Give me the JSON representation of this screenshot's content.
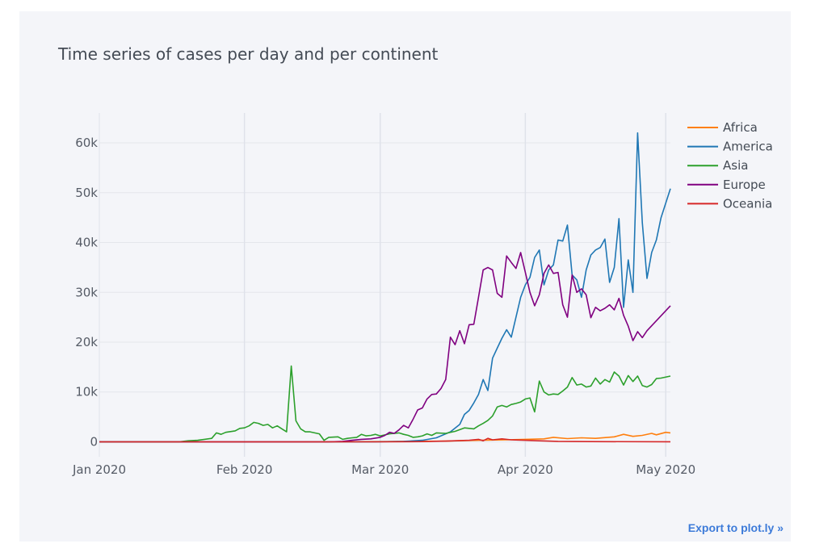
{
  "chart_data": {
    "type": "line",
    "title": "Time series of cases per day and per continent",
    "xlabel": "",
    "ylabel": "",
    "x_ticks": [
      "Jan 2020",
      "Feb 2020",
      "Mar 2020",
      "Apr 2020",
      "May 2020"
    ],
    "y_ticks": [
      "0",
      "10k",
      "20k",
      "30k",
      "40k",
      "50k",
      "60k"
    ],
    "xlim": [
      "2020-01-01",
      "2020-05-02"
    ],
    "ylim": [
      -3000,
      66000
    ],
    "grid": true,
    "legend_position": "top-right",
    "series": [
      {
        "name": "Africa",
        "color": "#ff7f0e",
        "points": [
          [
            "2020-01-01",
            0
          ],
          [
            "2020-02-14",
            0
          ],
          [
            "2020-03-01",
            50
          ],
          [
            "2020-03-15",
            150
          ],
          [
            "2020-03-22",
            300
          ],
          [
            "2020-03-28",
            400
          ],
          [
            "2020-04-01",
            500
          ],
          [
            "2020-04-05",
            600
          ],
          [
            "2020-04-07",
            900
          ],
          [
            "2020-04-10",
            650
          ],
          [
            "2020-04-13",
            800
          ],
          [
            "2020-04-16",
            700
          ],
          [
            "2020-04-20",
            1000
          ],
          [
            "2020-04-22",
            1500
          ],
          [
            "2020-04-24",
            1100
          ],
          [
            "2020-04-26",
            1300
          ],
          [
            "2020-04-28",
            1700
          ],
          [
            "2020-04-29",
            1400
          ],
          [
            "2020-05-01",
            1900
          ],
          [
            "2020-05-02",
            1800
          ]
        ]
      },
      {
        "name": "America",
        "color": "#1f77b4",
        "points": [
          [
            "2020-01-01",
            0
          ],
          [
            "2020-02-29",
            0
          ],
          [
            "2020-03-06",
            100
          ],
          [
            "2020-03-10",
            300
          ],
          [
            "2020-03-13",
            800
          ],
          [
            "2020-03-16",
            2000
          ],
          [
            "2020-03-18",
            3500
          ],
          [
            "2020-03-19",
            5500
          ],
          [
            "2020-03-20",
            6300
          ],
          [
            "2020-03-21",
            7800
          ],
          [
            "2020-03-22",
            9500
          ],
          [
            "2020-03-23",
            12500
          ],
          [
            "2020-03-24",
            10300
          ],
          [
            "2020-03-25",
            16800
          ],
          [
            "2020-03-26",
            18800
          ],
          [
            "2020-03-27",
            20800
          ],
          [
            "2020-03-28",
            22500
          ],
          [
            "2020-03-29",
            21000
          ],
          [
            "2020-03-30",
            25000
          ],
          [
            "2020-03-31",
            29000
          ],
          [
            "2020-04-01",
            31500
          ],
          [
            "2020-04-02",
            33000
          ],
          [
            "2020-04-03",
            37000
          ],
          [
            "2020-04-04",
            38500
          ],
          [
            "2020-04-05",
            31500
          ],
          [
            "2020-04-06",
            34500
          ],
          [
            "2020-04-07",
            35500
          ],
          [
            "2020-04-08",
            40500
          ],
          [
            "2020-04-09",
            40300
          ],
          [
            "2020-04-10",
            43500
          ],
          [
            "2020-04-11",
            33500
          ],
          [
            "2020-04-12",
            32500
          ],
          [
            "2020-04-13",
            29000
          ],
          [
            "2020-04-14",
            34500
          ],
          [
            "2020-04-15",
            37500
          ],
          [
            "2020-04-16",
            38500
          ],
          [
            "2020-04-17",
            39000
          ],
          [
            "2020-04-18",
            40700
          ],
          [
            "2020-04-19",
            32000
          ],
          [
            "2020-04-20",
            35000
          ],
          [
            "2020-04-21",
            44800
          ],
          [
            "2020-04-22",
            27000
          ],
          [
            "2020-04-23",
            36500
          ],
          [
            "2020-04-24",
            30000
          ],
          [
            "2020-04-25",
            62000
          ],
          [
            "2020-04-26",
            44000
          ],
          [
            "2020-04-27",
            32800
          ],
          [
            "2020-04-28",
            38000
          ],
          [
            "2020-04-29",
            40500
          ],
          [
            "2020-04-30",
            45000
          ],
          [
            "2020-05-02",
            50800
          ]
        ]
      },
      {
        "name": "Asia",
        "color": "#2ca02c",
        "points": [
          [
            "2020-01-01",
            0
          ],
          [
            "2020-01-18",
            0
          ],
          [
            "2020-01-20",
            200
          ],
          [
            "2020-01-22",
            300
          ],
          [
            "2020-01-25",
            700
          ],
          [
            "2020-01-26",
            1800
          ],
          [
            "2020-01-27",
            1500
          ],
          [
            "2020-01-28",
            1900
          ],
          [
            "2020-01-30",
            2200
          ],
          [
            "2020-01-31",
            2700
          ],
          [
            "2020-02-01",
            2800
          ],
          [
            "2020-02-02",
            3200
          ],
          [
            "2020-02-03",
            3900
          ],
          [
            "2020-02-04",
            3700
          ],
          [
            "2020-02-05",
            3300
          ],
          [
            "2020-02-06",
            3500
          ],
          [
            "2020-02-07",
            2800
          ],
          [
            "2020-02-08",
            3200
          ],
          [
            "2020-02-09",
            2600
          ],
          [
            "2020-02-10",
            2000
          ],
          [
            "2020-02-11",
            15200
          ],
          [
            "2020-02-12",
            4200
          ],
          [
            "2020-02-13",
            2600
          ],
          [
            "2020-02-14",
            2000
          ],
          [
            "2020-02-15",
            2000
          ],
          [
            "2020-02-16",
            1800
          ],
          [
            "2020-02-17",
            1600
          ],
          [
            "2020-02-18",
            300
          ],
          [
            "2020-02-19",
            900
          ],
          [
            "2020-02-21",
            1000
          ],
          [
            "2020-02-22",
            500
          ],
          [
            "2020-02-23",
            700
          ],
          [
            "2020-02-24",
            800
          ],
          [
            "2020-02-25",
            900
          ],
          [
            "2020-02-26",
            1500
          ],
          [
            "2020-02-27",
            1200
          ],
          [
            "2020-02-28",
            1300
          ],
          [
            "2020-02-29",
            1500
          ],
          [
            "2020-03-01",
            1200
          ],
          [
            "2020-03-03",
            1600
          ],
          [
            "2020-03-05",
            1800
          ],
          [
            "2020-03-06",
            1500
          ],
          [
            "2020-03-07",
            1300
          ],
          [
            "2020-03-08",
            900
          ],
          [
            "2020-03-09",
            1000
          ],
          [
            "2020-03-10",
            1200
          ],
          [
            "2020-03-11",
            1600
          ],
          [
            "2020-03-12",
            1300
          ],
          [
            "2020-03-13",
            1800
          ],
          [
            "2020-03-15",
            1700
          ],
          [
            "2020-03-17",
            2100
          ],
          [
            "2020-03-19",
            2800
          ],
          [
            "2020-03-21",
            2600
          ],
          [
            "2020-03-22",
            3200
          ],
          [
            "2020-03-23",
            3700
          ],
          [
            "2020-03-24",
            4300
          ],
          [
            "2020-03-25",
            5200
          ],
          [
            "2020-03-26",
            7000
          ],
          [
            "2020-03-27",
            7300
          ],
          [
            "2020-03-28",
            7000
          ],
          [
            "2020-03-29",
            7500
          ],
          [
            "2020-03-30",
            7700
          ],
          [
            "2020-03-31",
            8000
          ],
          [
            "2020-04-01",
            8600
          ],
          [
            "2020-04-02",
            8800
          ],
          [
            "2020-04-03",
            6000
          ],
          [
            "2020-04-04",
            12200
          ],
          [
            "2020-04-05",
            10000
          ],
          [
            "2020-04-06",
            9400
          ],
          [
            "2020-04-07",
            9600
          ],
          [
            "2020-04-08",
            9500
          ],
          [
            "2020-04-09",
            10200
          ],
          [
            "2020-04-10",
            11000
          ],
          [
            "2020-04-11",
            12900
          ],
          [
            "2020-04-12",
            11400
          ],
          [
            "2020-04-13",
            11600
          ],
          [
            "2020-04-14",
            11000
          ],
          [
            "2020-04-15",
            11200
          ],
          [
            "2020-04-16",
            12800
          ],
          [
            "2020-04-17",
            11600
          ],
          [
            "2020-04-18",
            12500
          ],
          [
            "2020-04-19",
            12000
          ],
          [
            "2020-04-20",
            14000
          ],
          [
            "2020-04-21",
            13200
          ],
          [
            "2020-04-22",
            11400
          ],
          [
            "2020-04-23",
            13300
          ],
          [
            "2020-04-24",
            12100
          ],
          [
            "2020-04-25",
            13200
          ],
          [
            "2020-04-26",
            11300
          ],
          [
            "2020-04-27",
            11000
          ],
          [
            "2020-04-28",
            11500
          ],
          [
            "2020-04-29",
            12700
          ],
          [
            "2020-04-30",
            12800
          ],
          [
            "2020-05-02",
            13200
          ]
        ]
      },
      {
        "name": "Europe",
        "color": "#800080",
        "points": [
          [
            "2020-01-01",
            0
          ],
          [
            "2020-02-19",
            0
          ],
          [
            "2020-02-22",
            100
          ],
          [
            "2020-02-24",
            300
          ],
          [
            "2020-02-26",
            500
          ],
          [
            "2020-02-28",
            600
          ],
          [
            "2020-03-01",
            900
          ],
          [
            "2020-03-02",
            1300
          ],
          [
            "2020-03-03",
            1900
          ],
          [
            "2020-03-04",
            1700
          ],
          [
            "2020-03-05",
            2400
          ],
          [
            "2020-03-06",
            3300
          ],
          [
            "2020-03-07",
            2800
          ],
          [
            "2020-03-08",
            4500
          ],
          [
            "2020-03-09",
            6400
          ],
          [
            "2020-03-10",
            6800
          ],
          [
            "2020-03-11",
            8600
          ],
          [
            "2020-03-12",
            9500
          ],
          [
            "2020-03-13",
            9600
          ],
          [
            "2020-03-14",
            10700
          ],
          [
            "2020-03-15",
            12500
          ],
          [
            "2020-03-16",
            21000
          ],
          [
            "2020-03-17",
            19500
          ],
          [
            "2020-03-18",
            22300
          ],
          [
            "2020-03-19",
            19700
          ],
          [
            "2020-03-20",
            23500
          ],
          [
            "2020-03-21",
            23600
          ],
          [
            "2020-03-22",
            29000
          ],
          [
            "2020-03-23",
            34500
          ],
          [
            "2020-03-24",
            35000
          ],
          [
            "2020-03-25",
            34500
          ],
          [
            "2020-03-26",
            29800
          ],
          [
            "2020-03-27",
            29000
          ],
          [
            "2020-03-28",
            37300
          ],
          [
            "2020-03-29",
            36000
          ],
          [
            "2020-03-30",
            34800
          ],
          [
            "2020-03-31",
            38000
          ],
          [
            "2020-04-01",
            34000
          ],
          [
            "2020-04-02",
            30000
          ],
          [
            "2020-04-03",
            27300
          ],
          [
            "2020-04-04",
            29500
          ],
          [
            "2020-04-05",
            33800
          ],
          [
            "2020-04-06",
            35500
          ],
          [
            "2020-04-07",
            33800
          ],
          [
            "2020-04-08",
            34000
          ],
          [
            "2020-04-09",
            27500
          ],
          [
            "2020-04-10",
            25000
          ],
          [
            "2020-04-11",
            33500
          ],
          [
            "2020-04-12",
            30000
          ],
          [
            "2020-04-13",
            30700
          ],
          [
            "2020-04-14",
            29500
          ],
          [
            "2020-04-15",
            24900
          ],
          [
            "2020-04-16",
            27000
          ],
          [
            "2020-04-17",
            26300
          ],
          [
            "2020-04-18",
            26800
          ],
          [
            "2020-04-19",
            27500
          ],
          [
            "2020-04-20",
            26500
          ],
          [
            "2020-04-21",
            28800
          ],
          [
            "2020-04-22",
            25400
          ],
          [
            "2020-04-23",
            23200
          ],
          [
            "2020-04-24",
            20300
          ],
          [
            "2020-04-25",
            22100
          ],
          [
            "2020-04-26",
            20900
          ],
          [
            "2020-04-27",
            22300
          ],
          [
            "2020-05-02",
            27300
          ]
        ]
      },
      {
        "name": "Oceania",
        "color": "#d62728",
        "points": [
          [
            "2020-01-01",
            0
          ],
          [
            "2020-03-01",
            0
          ],
          [
            "2020-03-10",
            50
          ],
          [
            "2020-03-15",
            150
          ],
          [
            "2020-03-20",
            300
          ],
          [
            "2020-03-22",
            500
          ],
          [
            "2020-03-23",
            200
          ],
          [
            "2020-03-24",
            700
          ],
          [
            "2020-03-25",
            400
          ],
          [
            "2020-03-27",
            600
          ],
          [
            "2020-03-29",
            400
          ],
          [
            "2020-04-01",
            300
          ],
          [
            "2020-04-04",
            200
          ],
          [
            "2020-04-08",
            100
          ],
          [
            "2020-04-15",
            50
          ],
          [
            "2020-05-02",
            20
          ]
        ]
      }
    ]
  },
  "export_link": "Export to plot.ly »"
}
